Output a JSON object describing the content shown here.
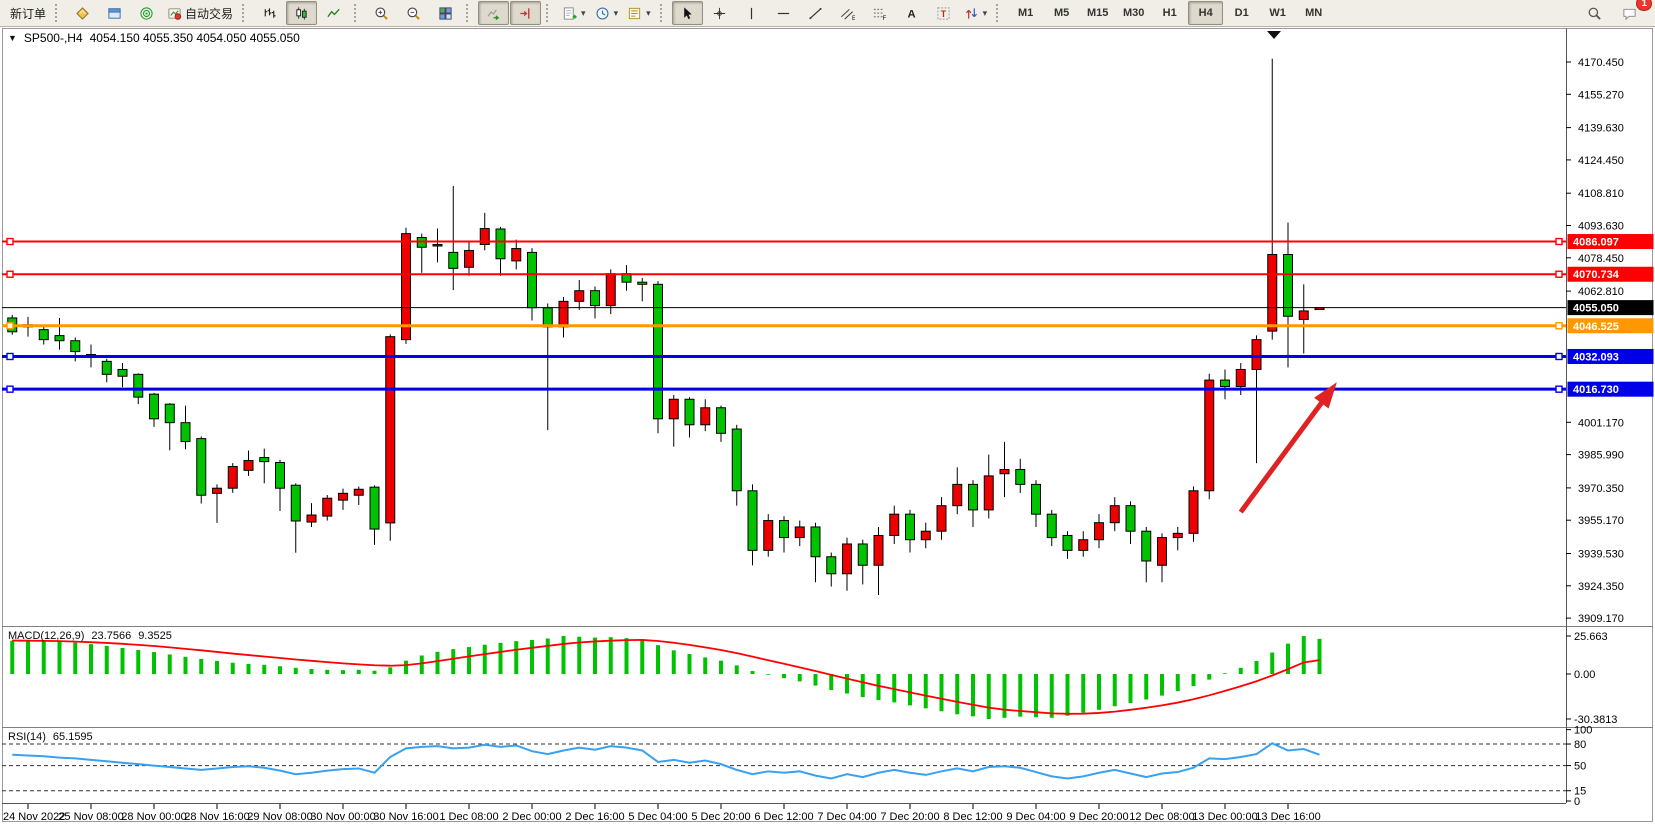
{
  "toolbar": {
    "new_order_label": "新订单",
    "auto_trading_label": "自动交易",
    "groups": [
      [
        {
          "name": "new-order",
          "icon": "",
          "label_key": "new_order_label"
        }
      ],
      [
        {
          "name": "market-watch",
          "icon": "diamond"
        },
        {
          "name": "data-window",
          "icon": "window"
        },
        {
          "name": "strategy-tester",
          "icon": "radar"
        },
        {
          "name": "auto-trading",
          "icon": "autotrade",
          "label_key": "auto_trading_label"
        }
      ],
      [
        {
          "name": "chart-bars",
          "icon": "bars"
        },
        {
          "name": "chart-candles",
          "icon": "candles",
          "active": true
        },
        {
          "name": "chart-line",
          "icon": "linechart"
        }
      ],
      [
        {
          "name": "zoom-in",
          "icon": "zoomin"
        },
        {
          "name": "zoom-out",
          "icon": "zoomout"
        },
        {
          "name": "tile-windows",
          "icon": "tile"
        }
      ],
      [
        {
          "name": "auto-scroll",
          "icon": "autoscroll",
          "active": true
        },
        {
          "name": "chart-shift",
          "icon": "chartshift",
          "active": true
        }
      ],
      [
        {
          "name": "new-chart",
          "icon": "addchart",
          "caret": true
        },
        {
          "name": "profiles",
          "icon": "clock",
          "caret": true
        },
        {
          "name": "templates",
          "icon": "templates",
          "caret": true
        }
      ],
      [
        {
          "name": "cursor",
          "icon": "cursor",
          "active": true
        },
        {
          "name": "crosshair",
          "icon": "crosshair"
        },
        {
          "name": "vertical-line",
          "icon": "vline"
        },
        {
          "name": "horizontal-line",
          "icon": "hline"
        },
        {
          "name": "trendline",
          "icon": "trend"
        },
        {
          "name": "equidistant-channel",
          "icon": "channel"
        },
        {
          "name": "fibonacci",
          "icon": "fibo"
        },
        {
          "name": "text",
          "icon": "textA"
        },
        {
          "name": "text-label",
          "icon": "textT"
        },
        {
          "name": "arrows",
          "icon": "arrows",
          "caret": true
        }
      ]
    ],
    "timeframes": [
      "M1",
      "M5",
      "M15",
      "M30",
      "H1",
      "H4",
      "D1",
      "W1",
      "MN"
    ],
    "active_timeframe": "H4",
    "notification_count": "1"
  },
  "chart": {
    "title_symbol": "SP500-,H4",
    "title_ohlc": "4054.150 4055.350 4054.050 4055.050"
  },
  "chart_data": {
    "type": "candlestick",
    "symbol": "SP500-",
    "period": "H4",
    "title": "SP500-,H4 4054.150 4055.350 4054.050 4055.050",
    "current_bar": {
      "open": 4054.15,
      "high": 4055.35,
      "low": 4054.05,
      "close": 4055.05
    },
    "up_color": "#ee0000",
    "down_color": "#00c300",
    "x_labels": [
      "24 Nov 2022",
      "25 Nov 08:00",
      "28 Nov 00:00",
      "28 Nov 16:00",
      "29 Nov 08:00",
      "30 Nov 00:00",
      "30 Nov 16:00",
      "1 Dec 08:00",
      "2 Dec 00:00",
      "2 Dec 16:00",
      "5 Dec 04:00",
      "5 Dec 20:00",
      "6 Dec 12:00",
      "7 Dec 04:00",
      "7 Dec 20:00",
      "8 Dec 12:00",
      "9 Dec 04:00",
      "9 Dec 20:00",
      "12 Dec 08:00",
      "13 Dec 00:00",
      "13 Dec 16:00"
    ],
    "price_ticks": [
      "4170.450",
      "4155.270",
      "4139.630",
      "4124.450",
      "4108.810",
      "4093.630",
      "4078.450",
      "4062.810",
      "4001.170",
      "3985.990",
      "3970.350",
      "3955.170",
      "3939.530",
      "3924.350",
      "3909.170"
    ],
    "hlines": [
      {
        "price": 4086.097,
        "label": "4086.097",
        "color": "#fe0000",
        "width": 2,
        "handles": true
      },
      {
        "price": 4070.734,
        "label": "4070.734",
        "color": "#fe0000",
        "width": 2,
        "handles": true
      },
      {
        "price": 4055.05,
        "label": "4055.050",
        "color": "#000000",
        "width": 1,
        "handles": false
      },
      {
        "price": 4046.525,
        "label": "4046.525",
        "color": "#ff9800",
        "width": 3,
        "handles": true
      },
      {
        "price": 4032.093,
        "label": "4032.093",
        "color": "#0000e8",
        "width": 3,
        "handles": true
      },
      {
        "price": 4016.73,
        "label": "4016.730",
        "color": "#0000e8",
        "width": 3,
        "handles": true
      }
    ],
    "candles": [
      [
        4050.2,
        4051.6,
        4042.3,
        4043.7
      ],
      [
        4046.0,
        4050.7,
        4041.4,
        4047.0
      ],
      [
        4044.7,
        4046.0,
        4037.7,
        4040.0
      ],
      [
        4041.9,
        4050.2,
        4035.3,
        4039.5
      ],
      [
        4039.5,
        4041.0,
        4029.8,
        4034.4
      ],
      [
        4033.0,
        4037.7,
        4027.0,
        4031.6
      ],
      [
        4029.8,
        4031.0,
        4020.0,
        4023.7
      ],
      [
        4026.0,
        4029.0,
        4017.7,
        4022.8
      ],
      [
        4023.7,
        4024.2,
        4009.7,
        4013.0
      ],
      [
        4014.4,
        4015.0,
        3999.0,
        4002.8
      ],
      [
        4009.7,
        4010.2,
        3988.0,
        4001.0
      ],
      [
        4001.0,
        4009.0,
        3988.5,
        3992.1
      ],
      [
        3993.5,
        3994.5,
        3963.0,
        3966.9
      ],
      [
        3967.8,
        3972.0,
        3953.9,
        3970.2
      ],
      [
        3970.2,
        3982.0,
        3968.0,
        3980.4
      ],
      [
        3978.6,
        3987.9,
        3976.0,
        3983.2
      ],
      [
        3984.6,
        3988.8,
        3972.5,
        3982.7
      ],
      [
        3982.3,
        3983.5,
        3959.5,
        3970.2
      ],
      [
        3971.6,
        3972.5,
        3939.9,
        3954.8
      ],
      [
        3954.3,
        3963.2,
        3952.0,
        3957.6
      ],
      [
        3957.1,
        3967.0,
        3955.0,
        3965.5
      ],
      [
        3964.6,
        3970.0,
        3960.0,
        3967.8
      ],
      [
        3966.9,
        3971.0,
        3962.3,
        3969.7
      ],
      [
        3970.7,
        3971.6,
        3943.6,
        3951.0
      ],
      [
        3953.9,
        4042.5,
        3945.5,
        4041.4
      ],
      [
        4040.0,
        4092.6,
        4038.0,
        4089.8
      ],
      [
        4088.0,
        4089.8,
        4071.4,
        4083.4
      ],
      [
        4084.0,
        4092.2,
        4076.3,
        4084.7
      ],
      [
        4081.0,
        4112.2,
        4063.3,
        4073.5
      ],
      [
        4074.0,
        4086.0,
        4070.0,
        4081.9
      ],
      [
        4084.7,
        4099.6,
        4082.0,
        4092.2
      ],
      [
        4092.0,
        4093.0,
        4070.0,
        4078.0
      ],
      [
        4077.0,
        4087.0,
        4073.0,
        4082.8
      ],
      [
        4081.0,
        4083.0,
        4049.0,
        4055.0
      ],
      [
        4055.0,
        4057.0,
        3997.5,
        4046.0
      ],
      [
        4046.0,
        4060.0,
        4041.0,
        4058.0
      ],
      [
        4058.0,
        4068.0,
        4054.0,
        4063.0
      ],
      [
        4063.0,
        4065.0,
        4050.0,
        4056.0
      ],
      [
        4056.0,
        4073.0,
        4052.0,
        4071.0
      ],
      [
        4071.0,
        4075.0,
        4063.0,
        4067.0
      ],
      [
        4067.0,
        4069.0,
        4058.0,
        4066.0
      ],
      [
        4066.0,
        4067.5,
        3996.0,
        4002.8
      ],
      [
        4002.8,
        4014.0,
        3989.7,
        4012.0
      ],
      [
        4012.0,
        4013.0,
        3994.0,
        4000.0
      ],
      [
        4000.0,
        4012.0,
        3997.0,
        4008.0
      ],
      [
        4008.0,
        4009.0,
        3992.0,
        3996.0
      ],
      [
        3998.0,
        4000.0,
        3962.0,
        3969.0
      ],
      [
        3969.0,
        3972.0,
        3934.0,
        3941.0
      ],
      [
        3941.0,
        3958.0,
        3938.0,
        3955.0
      ],
      [
        3955.0,
        3957.0,
        3940.0,
        3947.0
      ],
      [
        3947.0,
        3955.0,
        3943.0,
        3952.0
      ],
      [
        3952.0,
        3954.0,
        3926.0,
        3938.0
      ],
      [
        3938.0,
        3940.0,
        3924.0,
        3930.0
      ],
      [
        3930.0,
        3947.0,
        3922.0,
        3944.0
      ],
      [
        3944.0,
        3946.0,
        3925.0,
        3934.0
      ],
      [
        3934.0,
        3952.0,
        3920.0,
        3948.0
      ],
      [
        3948.0,
        3962.0,
        3944.0,
        3958.0
      ],
      [
        3958.0,
        3960.0,
        3940.0,
        3946.0
      ],
      [
        3946.0,
        3954.0,
        3942.0,
        3950.0
      ],
      [
        3950.0,
        3966.0,
        3946.0,
        3962.0
      ],
      [
        3962.0,
        3980.0,
        3958.0,
        3972.0
      ],
      [
        3972.0,
        3974.0,
        3952.0,
        3960.0
      ],
      [
        3960.0,
        3986.0,
        3956.0,
        3976.0
      ],
      [
        3977.0,
        3992.0,
        3966.0,
        3979.0
      ],
      [
        3979.0,
        3984.0,
        3968.0,
        3972.0
      ],
      [
        3972.0,
        3974.0,
        3952.0,
        3958.0
      ],
      [
        3958.0,
        3960.0,
        3943.0,
        3947.0
      ],
      [
        3948.0,
        3950.0,
        3937.0,
        3941.0
      ],
      [
        3941.0,
        3950.0,
        3938.0,
        3946.0
      ],
      [
        3946.0,
        3958.0,
        3942.0,
        3954.0
      ],
      [
        3954.0,
        3966.0,
        3950.0,
        3962.0
      ],
      [
        3962.0,
        3964.0,
        3944.0,
        3950.0
      ],
      [
        3950.0,
        3952.0,
        3926.0,
        3936.0
      ],
      [
        3934.0,
        3949.0,
        3926.0,
        3947.0
      ],
      [
        3947.0,
        3952.0,
        3941.0,
        3949.0
      ],
      [
        3949.0,
        3971.0,
        3945.0,
        3969.0
      ],
      [
        3969.0,
        4024.0,
        3965.0,
        4021.0
      ],
      [
        4021.0,
        4026.0,
        4012.0,
        4018.0
      ],
      [
        4018.0,
        4029.0,
        4014.0,
        4026.0
      ],
      [
        4026.0,
        4042.0,
        3982.0,
        4040.0
      ],
      [
        4044.0,
        4172.0,
        4040.0,
        4080.0
      ],
      [
        4080.0,
        4095.0,
        4027.0,
        4051.0
      ],
      [
        4049.5,
        4066.0,
        4033.5,
        4053.5
      ],
      [
        4054.15,
        4055.35,
        4054.05,
        4055.05
      ]
    ],
    "indicators": {
      "macd": {
        "name": "MACD(12,26,9)",
        "value_main": "23.7566",
        "value_signal": "9.3525",
        "ticks": [
          "25.663",
          "0.00",
          "-30.3813"
        ],
        "tick_values": [
          25.663,
          0,
          -30.3813
        ],
        "histogram_color": "#00c300",
        "signal_color": "#ff0000",
        "histogram": [
          22.5,
          22.3,
          22.1,
          21.8,
          21.2,
          20.2,
          19.0,
          17.6,
          16.2,
          14.8,
          13.2,
          11.6,
          10.2,
          8.8,
          7.6,
          6.8,
          6.2,
          5.2,
          4.2,
          3.4,
          2.8,
          2.6,
          2.8,
          2.2,
          4.5,
          9.0,
          12.5,
          15.0,
          16.8,
          18.2,
          19.8,
          21.0,
          22.2,
          23.0,
          24.0,
          25.66,
          25.2,
          24.6,
          24.9,
          24.2,
          23.2,
          19.5,
          16.0,
          13.5,
          11.2,
          9.0,
          5.8,
          2.0,
          -0.5,
          -2.8,
          -5.0,
          -7.8,
          -10.8,
          -13.2,
          -15.6,
          -17.6,
          -19.2,
          -21.2,
          -23.2,
          -25.2,
          -27.2,
          -28.6,
          -30.38,
          -29.6,
          -28.8,
          -29.2,
          -29.6,
          -28.2,
          -26.2,
          -24.2,
          -21.8,
          -19.6,
          -17.2,
          -14.6,
          -11.6,
          -8.2,
          -3.8,
          0.5,
          4.2,
          8.8,
          14.5,
          20.5,
          25.66,
          23.76
        ],
        "signal": [
          22.6,
          22.5,
          22.4,
          22.2,
          21.9,
          21.5,
          21.0,
          20.4,
          19.7,
          18.9,
          18.0,
          17.0,
          16.0,
          14.9,
          13.8,
          12.8,
          11.8,
          10.8,
          9.8,
          8.9,
          8.0,
          7.2,
          6.5,
          5.9,
          5.6,
          6.0,
          7.2,
          8.7,
          10.3,
          11.9,
          13.4,
          14.9,
          16.4,
          17.7,
          19.0,
          20.3,
          21.3,
          22.0,
          22.5,
          22.9,
          23.0,
          22.3,
          21.1,
          19.7,
          18.0,
          16.2,
          14.1,
          11.7,
          9.3,
          6.9,
          4.5,
          2.0,
          -0.6,
          -3.1,
          -5.6,
          -8.0,
          -10.2,
          -12.4,
          -14.6,
          -16.7,
          -18.8,
          -20.8,
          -22.7,
          -24.1,
          -25.0,
          -25.8,
          -26.6,
          -26.9,
          -26.8,
          -26.3,
          -25.4,
          -24.2,
          -22.8,
          -21.2,
          -19.3,
          -17.1,
          -14.4,
          -11.4,
          -8.3,
          -4.9,
          -1.0,
          3.3,
          7.8,
          9.35
        ]
      },
      "rsi": {
        "name": "RSI(14)",
        "value": "65.1595",
        "ticks": [
          "100",
          "80",
          "50",
          "15",
          "0"
        ],
        "tick_values": [
          100,
          80,
          50,
          15,
          0
        ],
        "levels": [
          80,
          50,
          15
        ],
        "line_color": "#3aa0f0",
        "values": [
          65,
          64,
          63,
          61,
          60,
          58,
          56,
          54,
          52,
          50,
          48,
          46,
          44,
          46,
          48,
          49,
          47,
          43,
          38,
          40,
          43,
          45,
          46,
          40,
          62,
          74,
          76,
          77,
          74,
          75,
          79,
          76,
          78,
          70,
          66,
          71,
          75,
          72,
          77,
          75,
          71,
          55,
          58,
          54,
          57,
          52,
          44,
          38,
          42,
          40,
          42,
          36,
          32,
          38,
          34,
          40,
          44,
          40,
          37,
          42,
          46,
          42,
          48,
          49,
          47,
          41,
          35,
          32,
          35,
          40,
          44,
          39,
          34,
          39,
          41,
          47,
          60,
          59,
          62,
          66,
          81,
          71,
          73,
          65.16
        ]
      }
    },
    "annotations": [
      {
        "type": "arrow",
        "color": "#e02222",
        "from_bar": 78,
        "from_price": 3959,
        "to_bar": 84.1,
        "to_price": 4020
      }
    ]
  }
}
